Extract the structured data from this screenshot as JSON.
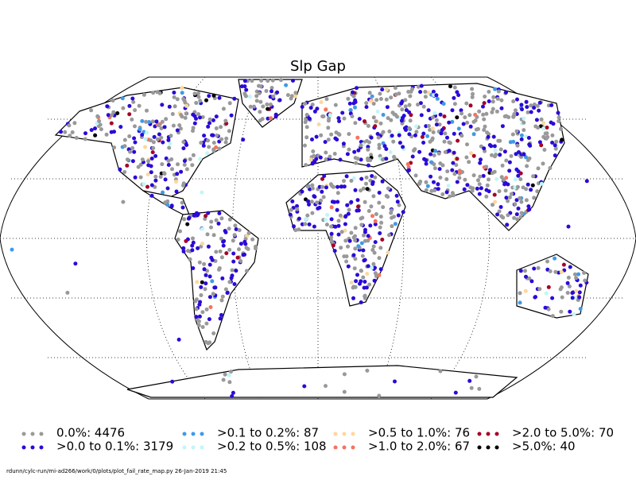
{
  "title": "Slp Gap",
  "legend": [
    {
      "label": "0.0%: 4476",
      "color": "#999999"
    },
    {
      "label": ">0.0 to 0.1%: 3179",
      "color": "#2a0ad8"
    },
    {
      "label": ">0.1 to 0.2%: 87",
      "color": "#3f9ae8"
    },
    {
      "label": ">0.2 to 0.5%: 108",
      "color": "#bff7f7"
    },
    {
      "label": ">0.5 to 1.0%: 76",
      "color": "#fed79a"
    },
    {
      "label": ">1.0 to 2.0%: 67",
      "color": "#f5735f"
    },
    {
      "label": ">2.0 to 5.0%: 70",
      "color": "#a50026"
    },
    {
      "label": ">5.0%: 40",
      "color": "#000000"
    }
  ],
  "footer": "rdunn/cylc-run/mi-ad266/work/0/plots/plot_fail_rate_map.py   26-Jan-2019 21:45"
}
